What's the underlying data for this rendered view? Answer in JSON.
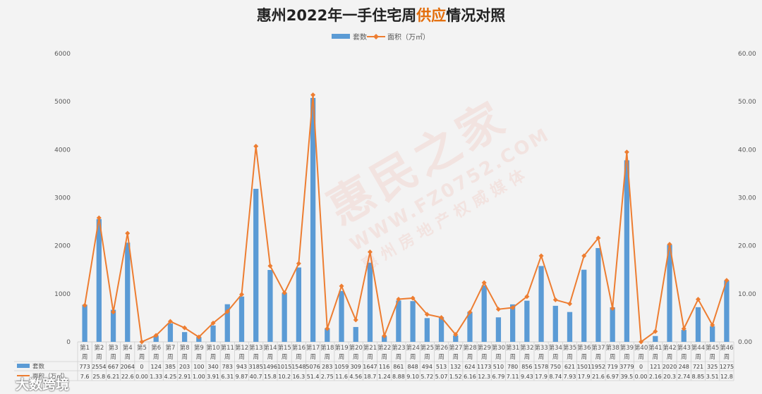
{
  "chart_data": {
    "type": "bar+line",
    "title": "惠州2022年一手住宅周供应情况对照",
    "title_highlight": "供应",
    "categories": [
      "第1周",
      "第2周",
      "第3周",
      "第4周",
      "第5周",
      "第6周",
      "第7周",
      "第8周",
      "第9周",
      "第10周",
      "第11周",
      "第12周",
      "第13周",
      "第14周",
      "第15周",
      "第16周",
      "第17周",
      "第18周",
      "第19周",
      "第20周",
      "第21周",
      "第22周",
      "第23周",
      "第24周",
      "第25周",
      "第26周",
      "第27周",
      "第28周",
      "第29周",
      "第30周",
      "第31周",
      "第32周",
      "第33周",
      "第34周",
      "第35周",
      "第36周",
      "第37周",
      "第38周",
      "第39周",
      "第40周",
      "第41周",
      "第42周",
      "第43周",
      "第44周",
      "第45周",
      "第46周"
    ],
    "series": [
      {
        "name": "套数",
        "axis": "left",
        "kind": "bar",
        "values": [
          773,
          2554,
          667,
          2064,
          0,
          124,
          385,
          203,
          100,
          340,
          783,
          943,
          3185,
          1496,
          1015,
          1548,
          5076,
          283,
          1059,
          309,
          1647,
          116,
          861,
          848,
          494,
          513,
          132,
          624,
          1173,
          510,
          780,
          856,
          1578,
          750,
          621,
          1501,
          1952,
          719,
          3779,
          0,
          121,
          2020,
          248,
          721,
          325,
          1275
        ],
        "value_labels": [
          "773",
          "2554",
          "667",
          "2064",
          "0",
          "124",
          "385",
          "203",
          "100",
          "340",
          "783",
          "943",
          "3185",
          "1496",
          "1015",
          "1548",
          "5076",
          "283",
          "1059",
          "309",
          "1647",
          "116",
          "861",
          "848",
          "494",
          "513",
          "132",
          "624",
          "1173",
          "510",
          "780",
          "856",
          "1578",
          "750",
          "621",
          "1501",
          "1952",
          "719",
          "3779",
          "0",
          "121",
          "2020",
          "248",
          "721",
          "325",
          "1275"
        ]
      },
      {
        "name": "面积（万㎡）",
        "axis": "right",
        "kind": "line",
        "values": [
          7.6,
          25.8,
          6.21,
          22.6,
          0.0,
          1.33,
          4.25,
          2.91,
          1.0,
          3.91,
          6.31,
          9.87,
          40.7,
          15.8,
          10.2,
          16.3,
          51.4,
          2.75,
          11.6,
          4.56,
          18.7,
          1.24,
          8.88,
          9.1,
          5.72,
          5.07,
          1.52,
          6.16,
          12.3,
          6.79,
          7.11,
          9.43,
          17.9,
          8.74,
          7.93,
          17.9,
          21.6,
          6.97,
          39.5,
          0.0,
          2.16,
          20.3,
          2.74,
          8.85,
          3.51,
          12.8
        ],
        "value_labels": [
          "7.6",
          "25.8",
          "6.21",
          "22.6",
          "0.00",
          "1.33",
          "4.25",
          "2.91",
          "1.00",
          "3.91",
          "6.31",
          "9.87",
          "40.7",
          "15.8",
          "10.2",
          "16.3",
          "51.4",
          "2.75",
          "11.6",
          "4.56",
          "18.7",
          "1.24",
          "8.88",
          "9.10",
          "5.72",
          "5.07",
          "1.52",
          "6.16",
          "12.3",
          "6.79",
          "7.11",
          "9.43",
          "17.9",
          "8.74",
          "7.93",
          "17.9",
          "21.6",
          "6.97",
          "39.5",
          "0.00",
          "2.16",
          "20.3",
          "2.74",
          "8.85",
          "3.51",
          "12.8"
        ]
      }
    ],
    "left_axis": {
      "ylim": [
        0,
        6000
      ],
      "ticks": [
        "0",
        "1000",
        "2000",
        "3000",
        "4000",
        "5000",
        "6000"
      ]
    },
    "right_axis": {
      "ylim": [
        0,
        60
      ],
      "ticks": [
        "0.00",
        "10.00",
        "20.00",
        "30.00",
        "40.00",
        "50.00",
        "60.00"
      ]
    },
    "data_table_labels": [
      "套数",
      "面积（万㎡）"
    ],
    "legend_position": "top",
    "grid": false
  },
  "watermark": {
    "main": "惠民之家",
    "sub": "WWW.FZ0752.COM",
    "sub2": "惠州房地产权威媒体"
  },
  "logo": {
    "text": "大数跨境"
  },
  "colors": {
    "bar": "#5b9bd5",
    "line": "#ed7d31",
    "title": "#222222",
    "title_highlight": "#e36c09",
    "axis_text": "#595959",
    "background": "#f3f3f3"
  }
}
